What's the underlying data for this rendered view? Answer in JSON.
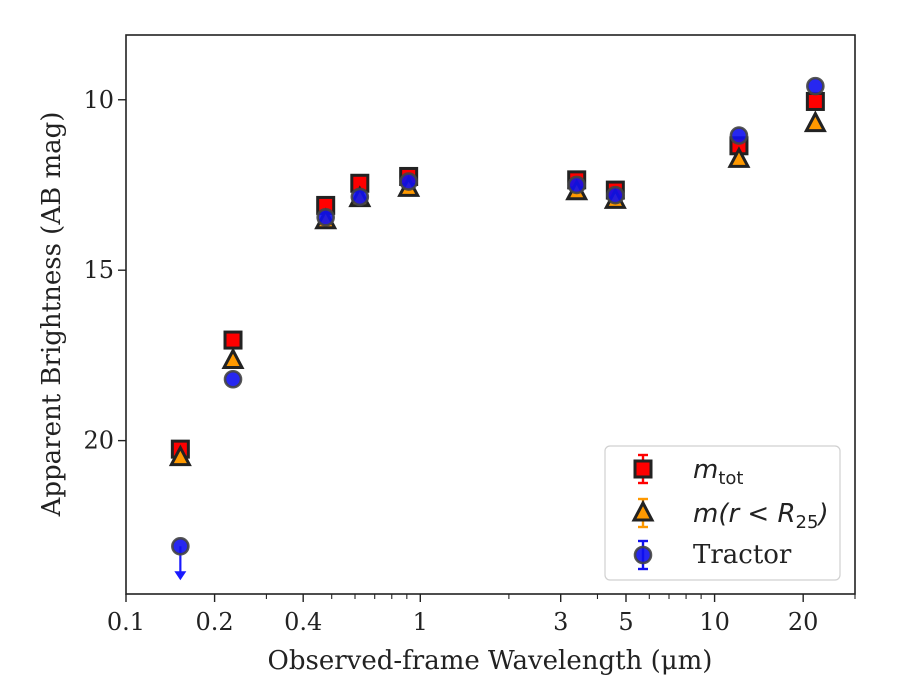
{
  "chart_data": {
    "type": "scatter",
    "xlabel": "Observed-frame Wavelength (μm)",
    "ylabel": "Apparent Brightness (AB mag)",
    "xscale": "log",
    "xlim": [
      0.1,
      30
    ],
    "ylim": [
      24.5,
      8.1
    ],
    "y_inverted": true,
    "x_ticks": [
      {
        "value": 0.1,
        "label": "0.1"
      },
      {
        "value": 0.2,
        "label": "0.2"
      },
      {
        "value": 0.4,
        "label": "0.4"
      },
      {
        "value": 1,
        "label": "1"
      },
      {
        "value": 3,
        "label": "3"
      },
      {
        "value": 5,
        "label": "5"
      },
      {
        "value": 10,
        "label": "10"
      },
      {
        "value": 20,
        "label": "20"
      }
    ],
    "x_minor_ticks": [
      0.3,
      0.5,
      0.6,
      0.7,
      0.8,
      0.9,
      2,
      4,
      6,
      7,
      8,
      9,
      30
    ],
    "y_ticks": [
      {
        "value": 10,
        "label": "10"
      },
      {
        "value": 15,
        "label": "15"
      },
      {
        "value": 20,
        "label": "20"
      }
    ],
    "grid": false,
    "legend_position": "bottom-right",
    "series": [
      {
        "name": "m_tot",
        "marker": "square",
        "color": "#ff0000",
        "edge": "#222222",
        "x": [
          0.153,
          0.231,
          0.477,
          0.623,
          0.913,
          3.4,
          4.6,
          12.1,
          22.0
        ],
        "y": [
          20.25,
          17.05,
          13.1,
          12.45,
          12.25,
          12.35,
          12.65,
          11.35,
          10.05
        ]
      },
      {
        "name": "m(r<R25)",
        "marker": "triangle",
        "color": "#ff9900",
        "edge": "#222222",
        "x": [
          0.153,
          0.231,
          0.477,
          0.623,
          0.913,
          3.4,
          4.6,
          12.1,
          22.0
        ],
        "y": [
          20.5,
          17.65,
          13.55,
          12.9,
          12.6,
          12.7,
          12.95,
          11.75,
          10.7
        ]
      },
      {
        "name": "Tractor",
        "marker": "circle",
        "color": "#1010ee",
        "edge": "#444444",
        "x": [
          0.153,
          0.231,
          0.477,
          0.623,
          0.913,
          3.4,
          4.6,
          12.1,
          22.0
        ],
        "y": [
          23.1,
          18.2,
          13.45,
          12.85,
          12.4,
          12.5,
          12.8,
          11.05,
          9.6
        ],
        "upper_limit": [
          true,
          false,
          false,
          false,
          false,
          false,
          false,
          false,
          false
        ]
      }
    ],
    "legend": [
      {
        "math": "m",
        "sub": "tot"
      },
      {
        "math": "m(r < R",
        "sub": "25",
        "tail": ")"
      },
      {
        "text": "Tractor"
      }
    ]
  }
}
